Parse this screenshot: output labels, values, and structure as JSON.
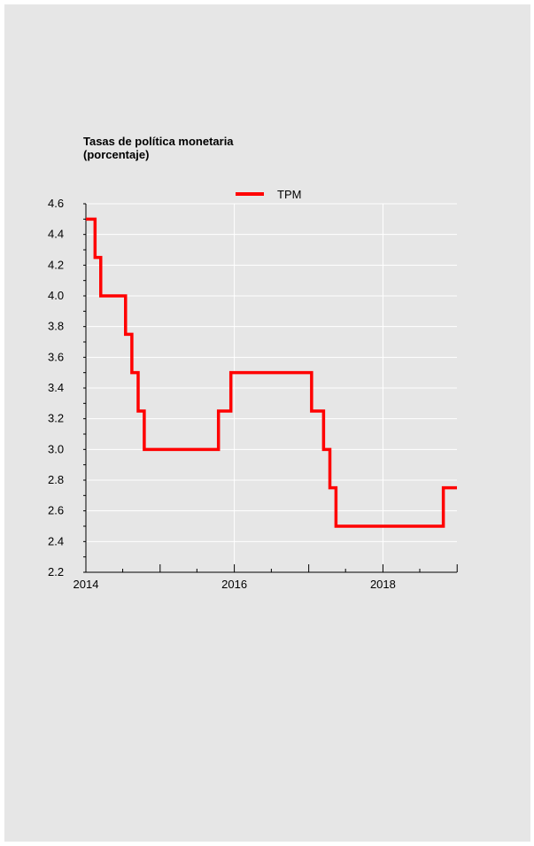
{
  "chart_data": {
    "type": "line",
    "title": "Tasas de política monetaria",
    "subtitle": "(porcentaje)",
    "xlabel": "",
    "ylabel": "",
    "x_ticks": [
      "2014",
      "2016",
      "2018"
    ],
    "y_ticks": [
      "2.2",
      "2.4",
      "2.6",
      "2.8",
      "3.0",
      "3.2",
      "3.4",
      "3.6",
      "3.8",
      "4.0",
      "4.2",
      "4.4",
      "4.6"
    ],
    "xlim": [
      "2014-01-01",
      "2018-12-31"
    ],
    "ylim": [
      2.2,
      4.6
    ],
    "grid": true,
    "legend_position": "top-center",
    "series": [
      {
        "name": "TPM",
        "color": "#ff0000",
        "step": true,
        "points": [
          [
            "2014-01-01",
            4.5
          ],
          [
            "2014-02-15",
            4.25
          ],
          [
            "2014-03-15",
            4.0
          ],
          [
            "2014-07-15",
            3.75
          ],
          [
            "2014-08-15",
            3.5
          ],
          [
            "2014-09-15",
            3.25
          ],
          [
            "2014-10-15",
            3.0
          ],
          [
            "2015-10-15",
            3.25
          ],
          [
            "2015-12-15",
            3.5
          ],
          [
            "2017-01-15",
            3.25
          ],
          [
            "2017-03-15",
            3.0
          ],
          [
            "2017-04-15",
            2.75
          ],
          [
            "2017-05-15",
            2.5
          ],
          [
            "2018-10-25",
            2.75
          ],
          [
            "2018-12-31",
            2.75
          ]
        ]
      }
    ]
  }
}
